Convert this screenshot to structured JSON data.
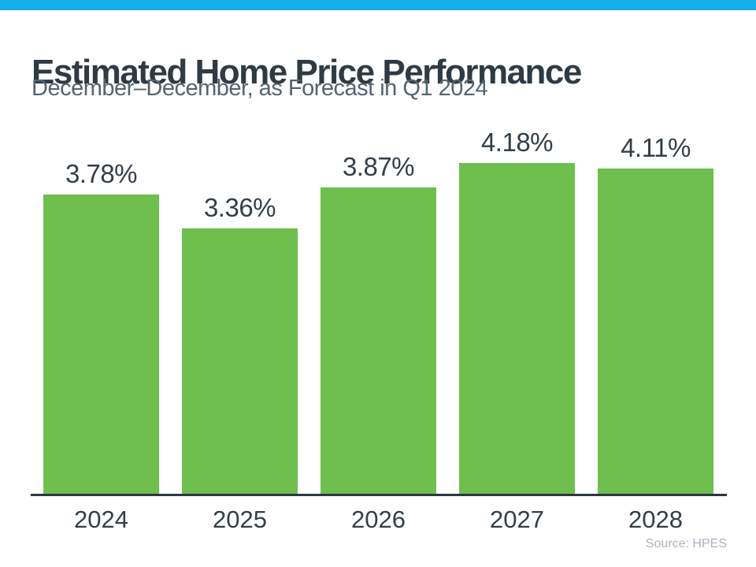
{
  "page": {
    "background_color": "#ffffff",
    "top_strip_color": "#14aeea"
  },
  "header": {
    "title": "Estimated Home Price Performance",
    "subtitle": "December–December, as Forecast in Q1 2024"
  },
  "chart_data": {
    "type": "bar",
    "categories": [
      "2024",
      "2025",
      "2026",
      "2027",
      "2028"
    ],
    "values": [
      3.78,
      3.36,
      3.87,
      4.18,
      4.11
    ],
    "value_labels": [
      "3.78%",
      "3.36%",
      "3.87%",
      "4.18%",
      "4.11%"
    ],
    "title": "Estimated Home Price Performance",
    "subtitle": "December–December, as Forecast in Q1 2024",
    "xlabel": "",
    "ylabel": "",
    "ylim": [
      0,
      4.5
    ],
    "grid": false,
    "legend": "none",
    "value_labels_position": "above-bars",
    "bar_color": "#6ebf4e",
    "label_color": "#333e48",
    "axis_line_color": "#2d3840"
  },
  "footer": {
    "source": "Source: HPES"
  }
}
